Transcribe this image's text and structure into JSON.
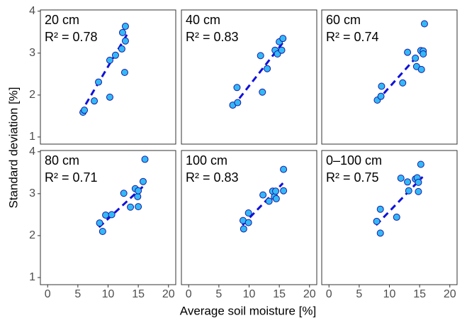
{
  "x_label": "Average soil moisture [%]",
  "y_label": "Standard deviation [%]",
  "chart_data": [
    {
      "type": "scatter",
      "title": "20 cm",
      "annotation": "R² = 0.78",
      "color": "#33b9f5",
      "edgecolor": "#1a1aa6",
      "x": [
        5.85,
        6.08,
        7.72,
        8.42,
        10.29,
        11.23,
        12.28,
        12.4,
        12.87,
        12.87,
        12.75,
        10.29
      ],
      "values": [
        1.59,
        1.64,
        1.86,
        2.31,
        2.83,
        2.95,
        3.1,
        3.49,
        3.64,
        3.29,
        2.54,
        1.95
      ],
      "trendline": {
        "x": [
          5.4,
          13.2
        ],
        "y": [
          1.56,
          3.46
        ],
        "color": "#1010dd"
      },
      "xlim": [
        -1.2,
        21.2
      ],
      "ylim": [
        0.83,
        4.03
      ],
      "yticks": [
        1,
        2,
        3,
        4
      ]
    },
    {
      "type": "scatter",
      "title": "40 cm",
      "annotation": "R² = 0.83",
      "color": "#33b9f5",
      "edgecolor": "#1a1aa6",
      "x": [
        7.3,
        8.1,
        8.0,
        12.2,
        11.9,
        13.0,
        14.3,
        14.7,
        15.0,
        15.4,
        15.6
      ],
      "values": [
        1.76,
        1.82,
        2.18,
        2.07,
        2.94,
        2.63,
        3.07,
        2.98,
        3.27,
        3.07,
        3.35
      ],
      "trendline": {
        "x": [
          7.3,
          15.6
        ],
        "y": [
          1.72,
          3.25
        ],
        "color": "#1010dd"
      },
      "xlim": [
        -1.2,
        21.2
      ],
      "ylim": [
        0.83,
        4.03
      ]
    },
    {
      "type": "scatter",
      "title": "60 cm",
      "annotation": "R² = 0.74",
      "color": "#33b9f5",
      "edgecolor": "#1a1aa6",
      "x": [
        8.0,
        8.6,
        8.7,
        12.2,
        13.0,
        14.3,
        14.5,
        15.2,
        15.3,
        15.6,
        15.6,
        15.8
      ],
      "values": [
        1.88,
        1.97,
        2.21,
        2.29,
        3.02,
        2.88,
        2.68,
        3.06,
        2.61,
        3.05,
        2.98,
        3.7
      ],
      "trendline": {
        "x": [
          7.9,
          15.8
        ],
        "y": [
          1.85,
          3.12
        ],
        "color": "#1010dd"
      },
      "xlim": [
        -1.2,
        21.2
      ],
      "ylim": [
        0.83,
        4.03
      ]
    },
    {
      "type": "scatter",
      "title": "80 cm",
      "annotation": "R² = 0.71",
      "color": "#33b9f5",
      "edgecolor": "#1a1aa6",
      "x": [
        8.6,
        9.1,
        9.6,
        10.6,
        12.6,
        13.7,
        14.5,
        14.9,
        15.0,
        15.0,
        15.8,
        16.1
      ],
      "values": [
        2.3,
        2.1,
        2.49,
        2.5,
        3.01,
        2.68,
        3.12,
        2.93,
        3.07,
        2.69,
        3.29,
        3.82
      ],
      "trendline": {
        "x": [
          8.5,
          16.0
        ],
        "y": [
          2.2,
          3.2
        ],
        "color": "#1010dd"
      },
      "xlim": [
        -1.2,
        21.2
      ],
      "ylim": [
        0.83,
        4.03
      ],
      "xticks": [
        0,
        5,
        10,
        15,
        20
      ],
      "yticks": [
        1,
        2,
        3,
        4
      ]
    },
    {
      "type": "scatter",
      "title": "100 cm",
      "annotation": "R² = 0.83",
      "color": "#33b9f5",
      "edgecolor": "#1a1aa6",
      "x": [
        9.0,
        9.1,
        9.9,
        9.9,
        12.3,
        13.3,
        13.9,
        14.2,
        14.4,
        14.5,
        15.7,
        15.7
      ],
      "values": [
        2.36,
        2.16,
        2.54,
        2.31,
        2.97,
        2.82,
        3.06,
        2.93,
        3.06,
        2.88,
        3.07,
        3.58
      ],
      "trendline": {
        "x": [
          8.9,
          15.6
        ],
        "y": [
          2.25,
          3.25
        ],
        "color": "#1010dd"
      },
      "xlim": [
        -1.2,
        21.2
      ],
      "ylim": [
        0.83,
        4.03
      ],
      "xticks": [
        0,
        5,
        10,
        15,
        20
      ]
    },
    {
      "type": "scatter",
      "title": "0–100 cm",
      "annotation": "R² = 0.75",
      "color": "#33b9f5",
      "edgecolor": "#1a1aa6",
      "x": [
        7.9,
        8.5,
        8.5,
        11.2,
        11.9,
        13.0,
        13.2,
        14.3,
        14.6,
        14.8,
        14.8,
        15.2
      ],
      "values": [
        2.34,
        2.63,
        2.06,
        2.44,
        3.37,
        3.28,
        3.07,
        3.35,
        3.38,
        3.05,
        3.27,
        3.7
      ],
      "trendline": {
        "x": [
          7.8,
          15.5
        ],
        "y": [
          2.25,
          3.4
        ],
        "color": "#1010dd"
      },
      "xlim": [
        -1.2,
        21.2
      ],
      "ylim": [
        0.83,
        4.03
      ],
      "xticks": [
        0,
        5,
        10,
        15,
        20
      ]
    }
  ]
}
